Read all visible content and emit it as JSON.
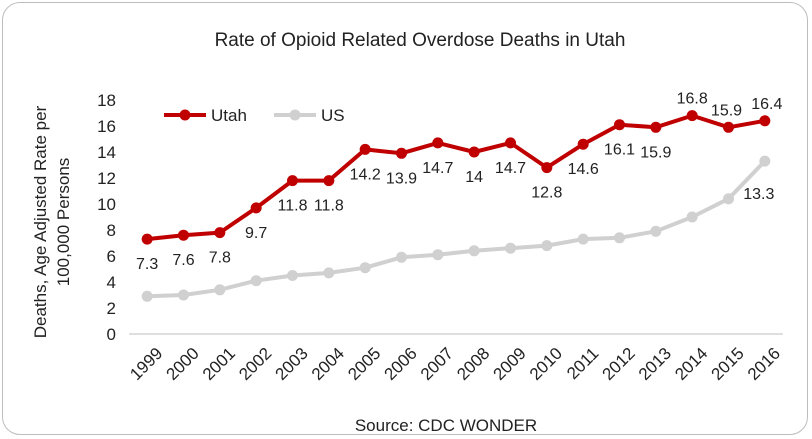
{
  "chart_data": {
    "type": "line",
    "title": "Rate of Opioid Related Overdose Deaths in Utah",
    "ylabel_line1": "Deaths, Age Adjusted Rate per",
    "ylabel_line2": "100,000 Persons",
    "source": "Source: CDC WONDER",
    "ylim": [
      0,
      18
    ],
    "yticks": [
      "0",
      "2",
      "4",
      "6",
      "8",
      "10",
      "12",
      "14",
      "16",
      "18"
    ],
    "categories": [
      "1999",
      "2000",
      "2001",
      "2002",
      "2003",
      "2004",
      "2005",
      "2006",
      "2007",
      "2008",
      "2009",
      "2010",
      "2011",
      "2012",
      "2013",
      "2014",
      "2015",
      "2016"
    ],
    "legend_position": "top-left",
    "grid": false,
    "series": [
      {
        "name": "Utah",
        "color": "#c00000",
        "values": [
          7.3,
          7.6,
          7.8,
          9.7,
          11.8,
          11.8,
          14.2,
          13.9,
          14.7,
          14,
          14.7,
          12.8,
          14.6,
          16.1,
          15.9,
          16.8,
          15.9,
          16.4
        ],
        "labels": [
          "7.3",
          "7.6",
          "7.8",
          "9.7",
          "11.8",
          "11.8",
          "14.2",
          "13.9",
          "14.7",
          "14",
          "14.7",
          "12.8",
          "14.6",
          "16.1",
          "15.9",
          "16.8",
          "15.9",
          "16.4"
        ]
      },
      {
        "name": "US",
        "color": "#d0d0d0",
        "values": [
          2.9,
          3.0,
          3.4,
          4.1,
          4.5,
          4.7,
          5.1,
          5.9,
          6.1,
          6.4,
          6.6,
          6.8,
          7.3,
          7.4,
          7.9,
          9.0,
          10.4,
          13.3
        ],
        "labels": [
          "",
          "",
          "",
          "",
          "",
          "",
          "",
          "",
          "",
          "",
          "",
          "",
          "",
          "",
          "",
          "",
          "",
          "13.3"
        ]
      }
    ]
  }
}
